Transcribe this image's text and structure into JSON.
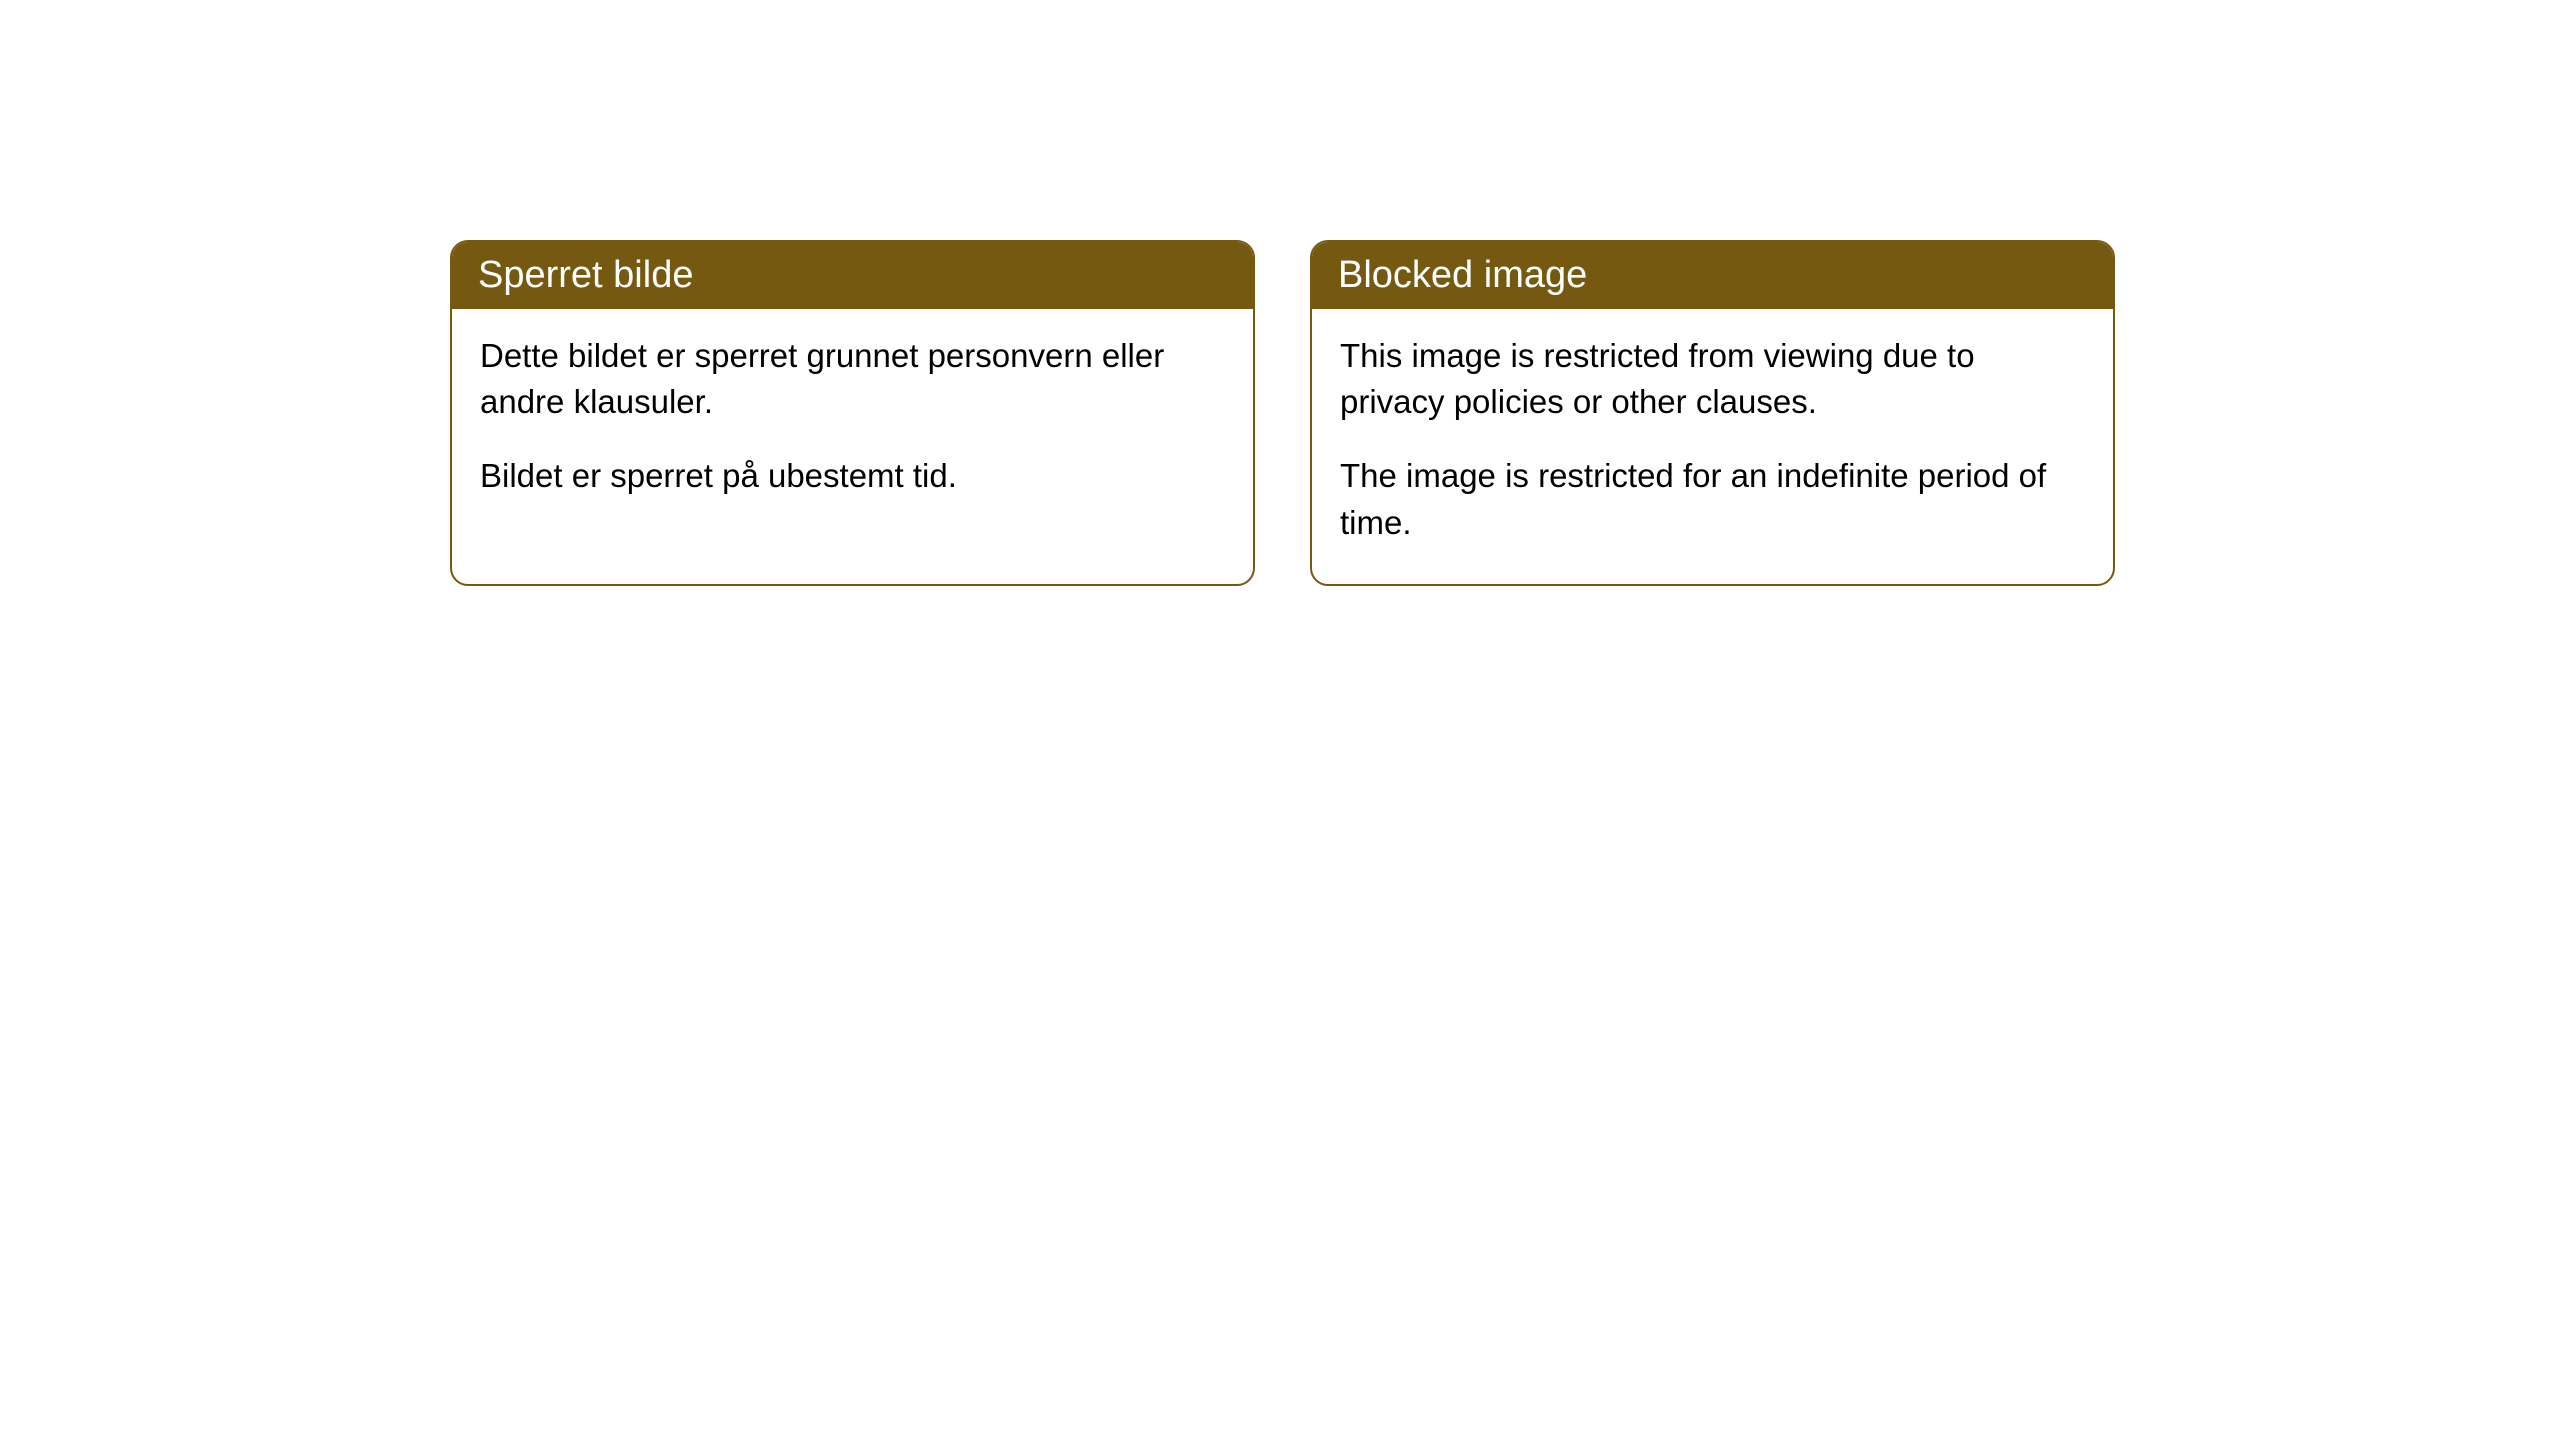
{
  "cards": [
    {
      "title": "Sperret bilde",
      "paragraph1": "Dette bildet er sperret grunnet personvern eller andre klausuler.",
      "paragraph2": "Bildet er sperret på ubestemt tid."
    },
    {
      "title": "Blocked image",
      "paragraph1": "This image is restricted from viewing due to privacy policies or other clauses.",
      "paragraph2": "The image is restricted for an indefinite period of time."
    }
  ],
  "style": {
    "header_background": "#765911",
    "header_text_color": "#ffffff",
    "border_color": "#765911",
    "card_background": "#ffffff",
    "body_text_color": "#000000",
    "border_radius": 18,
    "title_fontsize": 38,
    "body_fontsize": 33
  }
}
